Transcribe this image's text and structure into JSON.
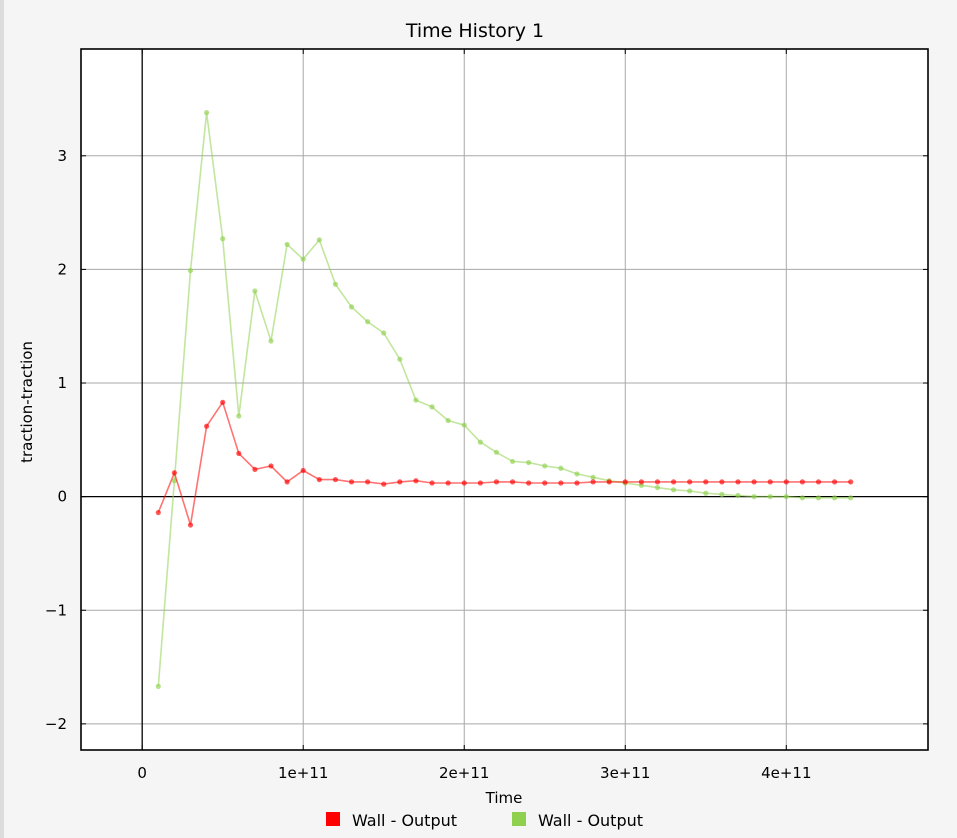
{
  "chart_data": {
    "type": "line",
    "title": "Time History 1",
    "xlabel": "Time",
    "ylabel": "traction-traction",
    "xlim": [
      -38000000000,
      488000000000
    ],
    "ylim": [
      -2.23,
      3.94
    ],
    "x_ticks": [
      0,
      100000000000,
      200000000000,
      300000000000,
      400000000000
    ],
    "x_tick_labels": [
      "0",
      "1e+11",
      "2e+11",
      "3e+11",
      "4e+11"
    ],
    "y_ticks": [
      -2,
      -1,
      0,
      1,
      2,
      3
    ],
    "y_tick_labels": [
      "−2",
      "−1",
      "0",
      "1",
      "2",
      "3"
    ],
    "grid": true,
    "legend_position": "bottom",
    "x": [
      10000000000,
      20000000000,
      30000000000,
      40000000000,
      50000000000,
      60000000000,
      70000000000,
      80000000000,
      90000000000,
      100000000000,
      110000000000,
      120000000000,
      130000000000,
      140000000000,
      150000000000,
      160000000000,
      170000000000,
      180000000000,
      190000000000,
      200000000000,
      210000000000,
      220000000000,
      230000000000,
      240000000000,
      250000000000,
      260000000000,
      270000000000,
      280000000000,
      290000000000,
      300000000000,
      310000000000,
      320000000000,
      330000000000,
      340000000000,
      350000000000,
      360000000000,
      370000000000,
      380000000000,
      390000000000,
      400000000000,
      410000000000,
      420000000000,
      430000000000,
      440000000000
    ],
    "series": [
      {
        "name": "Wall - Output",
        "color": "#ff0000",
        "values": [
          -0.14,
          0.21,
          -0.25,
          0.62,
          0.83,
          0.38,
          0.24,
          0.27,
          0.13,
          0.23,
          0.15,
          0.15,
          0.13,
          0.13,
          0.11,
          0.13,
          0.14,
          0.12,
          0.12,
          0.12,
          0.12,
          0.13,
          0.13,
          0.12,
          0.12,
          0.12,
          0.12,
          0.13,
          0.13,
          0.13,
          0.13,
          0.13,
          0.13,
          0.13,
          0.13,
          0.13,
          0.13,
          0.13,
          0.13,
          0.13,
          0.13,
          0.13,
          0.13,
          0.13
        ]
      },
      {
        "name": "Wall - Output",
        "color": "#8fd14f",
        "values": [
          -1.67,
          0.14,
          1.99,
          3.38,
          2.27,
          0.71,
          1.81,
          1.37,
          2.22,
          2.09,
          2.26,
          1.87,
          1.67,
          1.54,
          1.44,
          1.21,
          0.85,
          0.79,
          0.67,
          0.63,
          0.48,
          0.39,
          0.31,
          0.3,
          0.27,
          0.25,
          0.2,
          0.17,
          0.14,
          0.12,
          0.1,
          0.08,
          0.06,
          0.05,
          0.03,
          0.02,
          0.01,
          0.0,
          0.0,
          0.0,
          -0.01,
          -0.01,
          -0.01,
          -0.01
        ]
      }
    ]
  }
}
